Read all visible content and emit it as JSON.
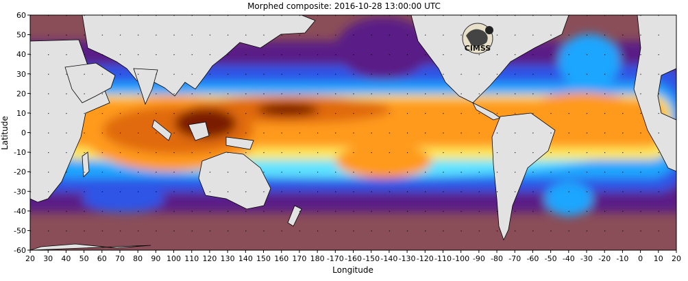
{
  "title": "Morphed composite: 2016-10-28 13:00:00 UTC",
  "logo_text": "CIMSS",
  "colors": {
    "land": "#e2e2e2",
    "very_dry": "#8a4e58",
    "dry": "#5a1f86",
    "low": "#2f55e6",
    "mid_low": "#1fa6ff",
    "mid": "#5fe3ff",
    "mid_high": "#ffe85a",
    "high": "#ff9a1f",
    "very_high": "#e06a0a",
    "extreme": "#7a1b05"
  },
  "chart_data": {
    "type": "heatmap",
    "title": "Morphed composite: 2016-10-28 13:00:00 UTC",
    "xlabel": "Longitude",
    "ylabel": "Latitude",
    "xlim": [
      20,
      380
    ],
    "ylim": [
      -60,
      60
    ],
    "grid": true,
    "x_ticks": [
      "20",
      "30",
      "40",
      "50",
      "60",
      "70",
      "80",
      "90",
      "100",
      "110",
      "120",
      "130",
      "140",
      "150",
      "160",
      "170",
      "180",
      "-170",
      "-160",
      "-150",
      "-140",
      "-130",
      "-120",
      "-110",
      "-100",
      "-90",
      "-80",
      "-70",
      "-60",
      "-50",
      "-40",
      "-30",
      "-20",
      "-10",
      "0",
      "10",
      "20"
    ],
    "y_ticks": [
      "60",
      "50",
      "40",
      "30",
      "20",
      "10",
      "0",
      "-10",
      "-20",
      "-30",
      "-40",
      "-50",
      "-60"
    ]
  }
}
